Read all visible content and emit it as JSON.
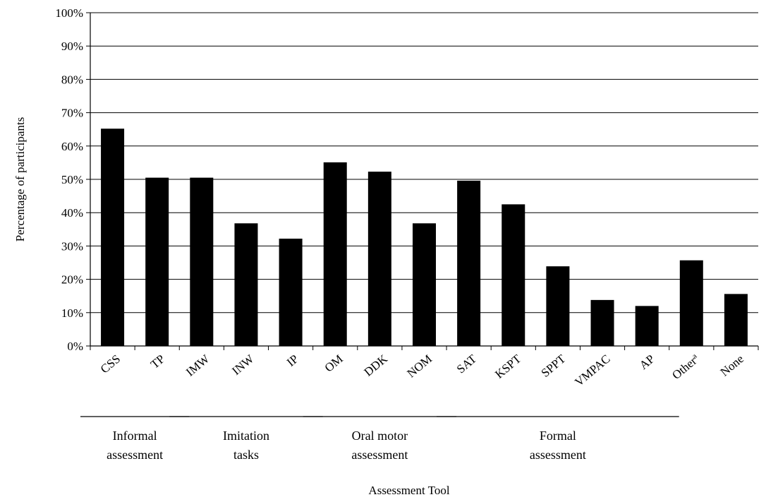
{
  "chart_data": {
    "type": "bar",
    "categories": [
      "CSS",
      "TP",
      "IMW",
      "INW",
      "IP",
      "OM",
      "DDK",
      "NOM",
      "SAT",
      "KSPT",
      "SPPT",
      "VMPAC",
      "AP",
      "Other",
      "None"
    ],
    "category_superscripts": [
      "",
      "",
      "",
      "",
      "",
      "",
      "",
      "",
      "",
      "",
      "",
      "",
      "",
      "a",
      ""
    ],
    "values": [
      65.2,
      50.5,
      50.5,
      36.8,
      32.2,
      55.1,
      52.3,
      36.8,
      49.6,
      42.5,
      23.9,
      13.8,
      12.0,
      25.7,
      15.6
    ],
    "xlabel": "Assessment Tool",
    "ylabel": "Percentage of participants",
    "ylim": [
      0,
      100
    ],
    "yticks": [
      "0%",
      "10%",
      "20%",
      "30%",
      "40%",
      "50%",
      "60%",
      "70%",
      "80%",
      "90%",
      "100%"
    ],
    "grid": true,
    "bar_color": "#000000",
    "groups": [
      {
        "lines": [
          "Informal",
          "assessment"
        ],
        "from": 0,
        "to": 1
      },
      {
        "lines": [
          "Imitation",
          "tasks"
        ],
        "from": 2,
        "to": 4
      },
      {
        "lines": [
          "Oral motor",
          "assessment"
        ],
        "from": 5,
        "to": 7
      },
      {
        "lines": [
          "Formal",
          "assessment"
        ],
        "from": 8,
        "to": 12
      }
    ]
  }
}
